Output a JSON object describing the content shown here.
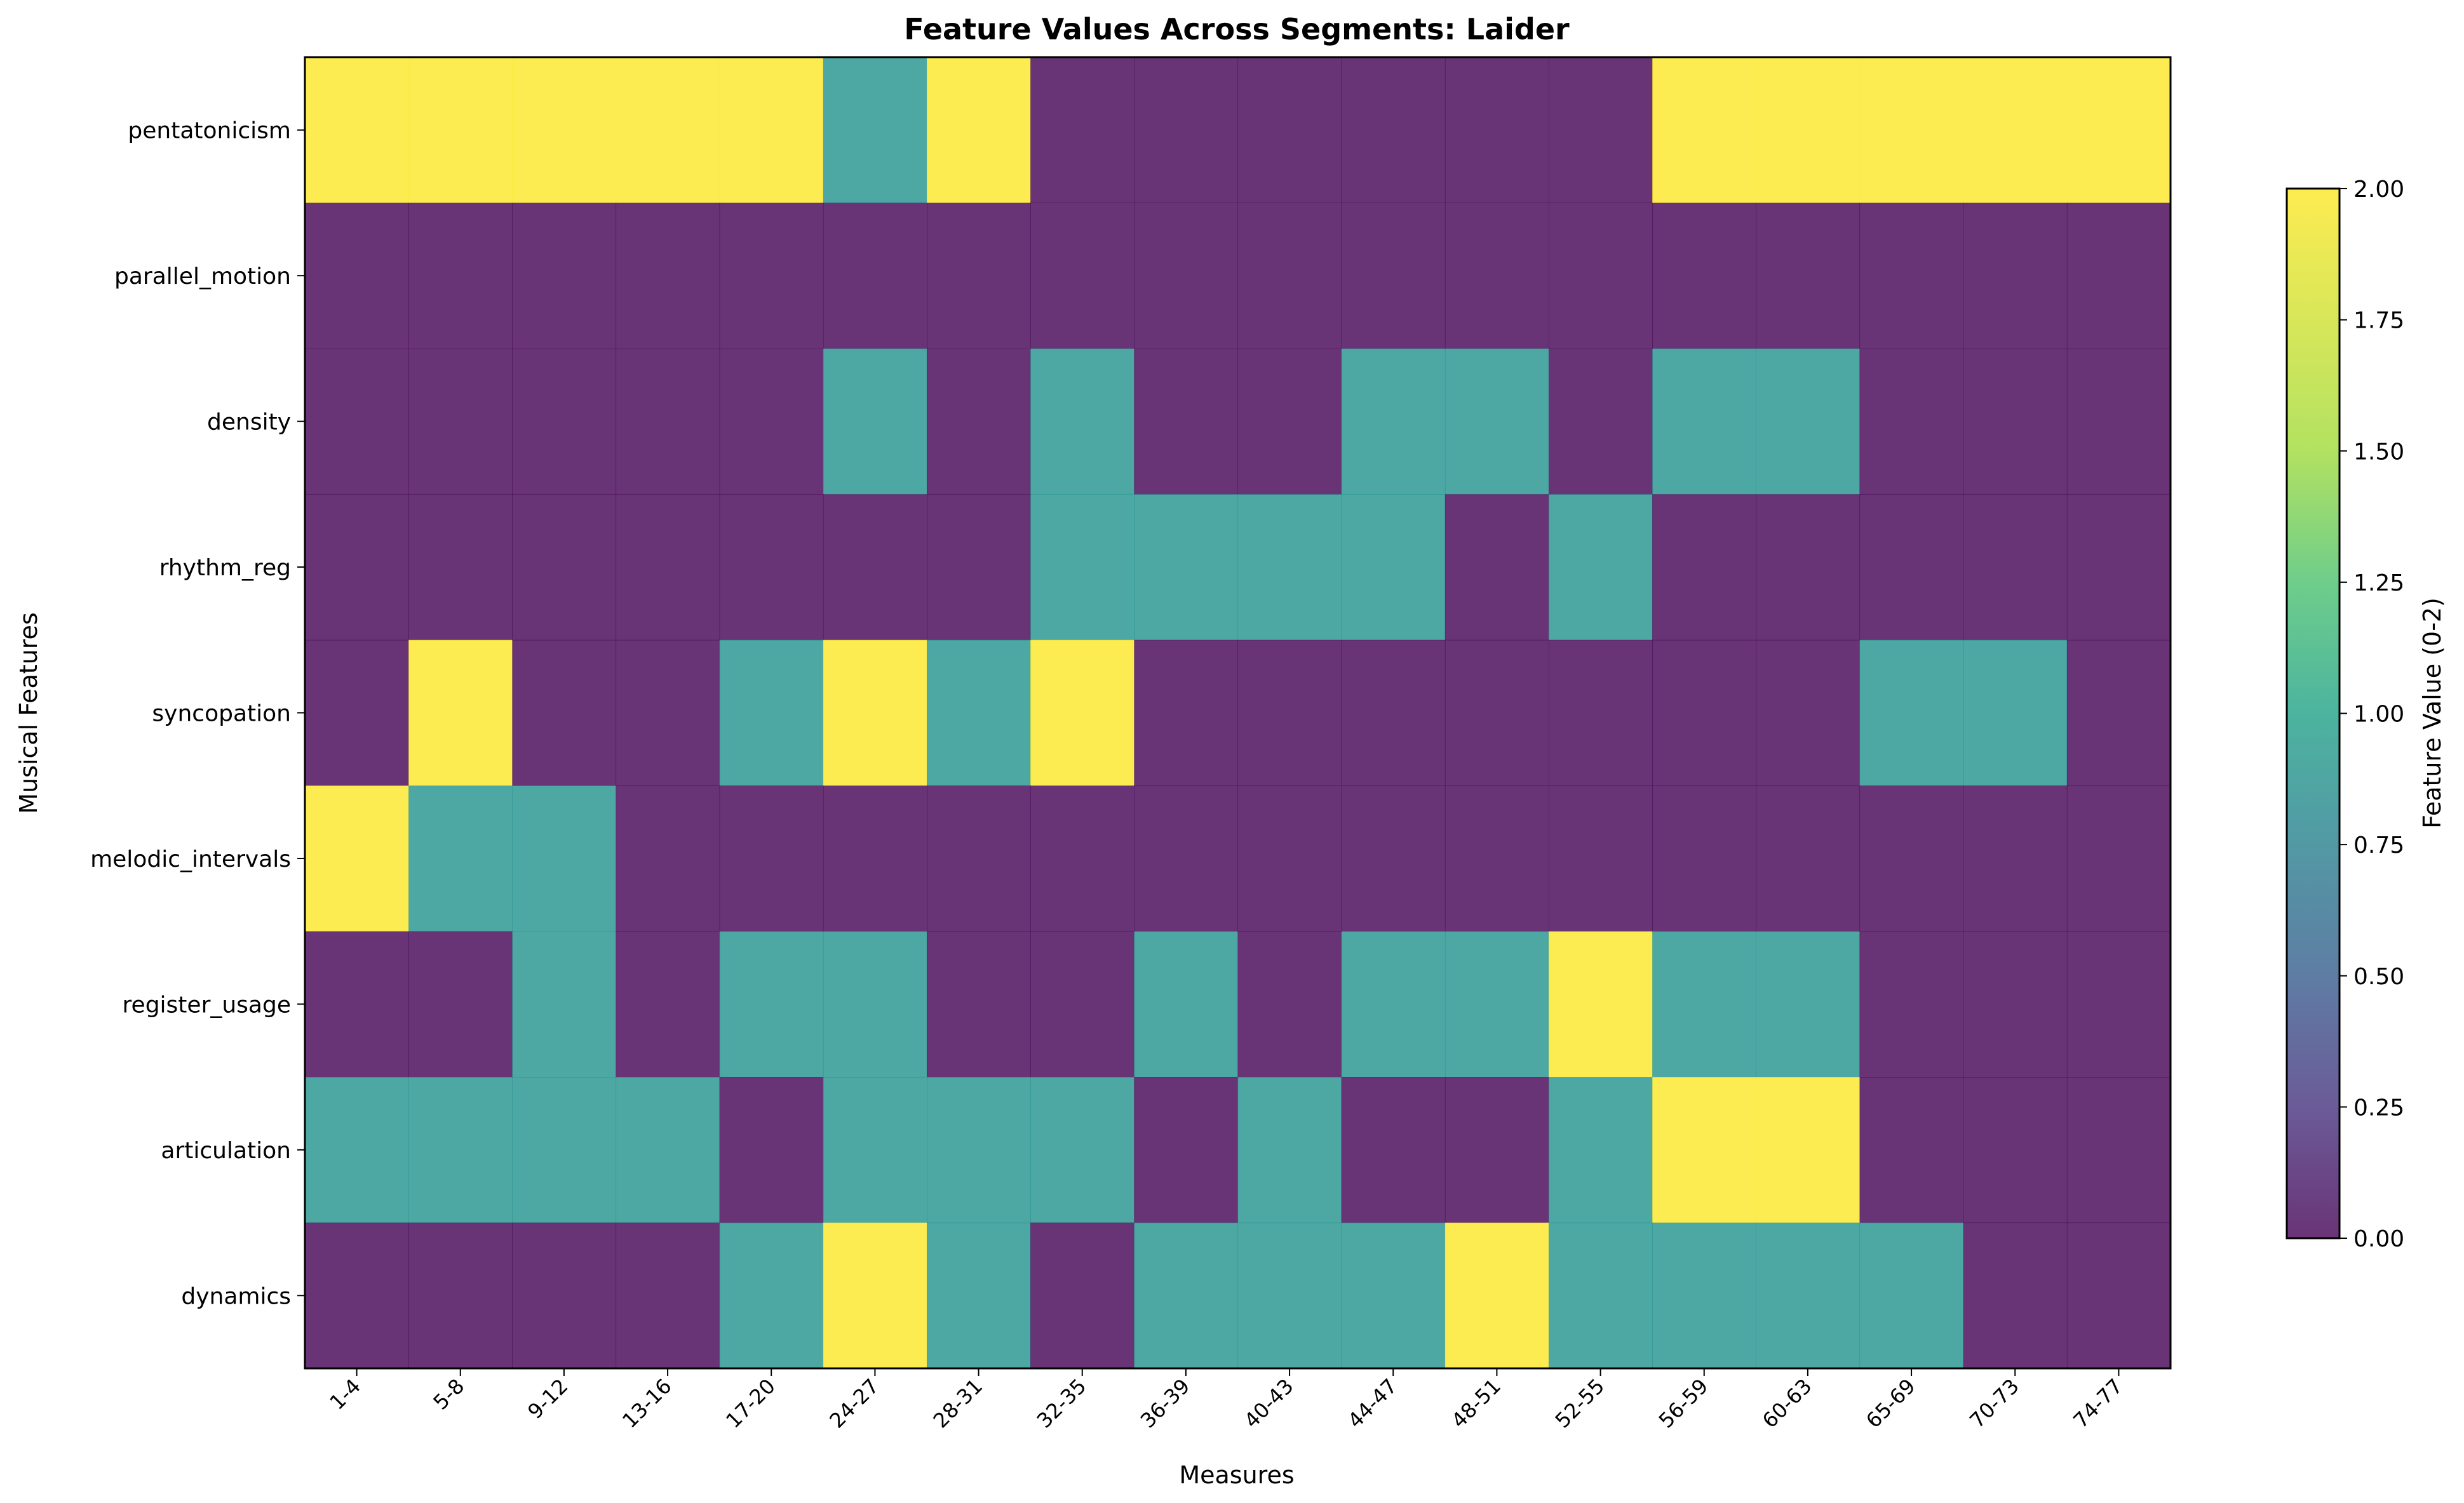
{
  "chart_data": {
    "type": "heatmap",
    "title": "Feature Values Across Segments: Laider",
    "xlabel": "Measures",
    "ylabel": "Musical Features",
    "x_categories": [
      "1-4",
      "5-8",
      "9-12",
      "13-16",
      "17-20",
      "24-27",
      "28-31",
      "32-35",
      "36-39",
      "40-43",
      "44-47",
      "48-51",
      "52-55",
      "56-59",
      "60-63",
      "65-69",
      "70-73",
      "74-77"
    ],
    "y_categories": [
      "pentatonicism",
      "parallel_motion",
      "density",
      "rhythm_reg",
      "syncopation",
      "melodic_intervals",
      "register_usage",
      "articulation",
      "dynamics"
    ],
    "values": [
      [
        2,
        2,
        2,
        2,
        2,
        1,
        2,
        0,
        0,
        0,
        0,
        0,
        0,
        2,
        2,
        2,
        2,
        2
      ],
      [
        0,
        0,
        0,
        0,
        0,
        0,
        0,
        0,
        0,
        0,
        0,
        0,
        0,
        0,
        0,
        0,
        0,
        0
      ],
      [
        0,
        0,
        0,
        0,
        0,
        1,
        0,
        1,
        0,
        0,
        1,
        1,
        0,
        1,
        1,
        0,
        0,
        0
      ],
      [
        0,
        0,
        0,
        0,
        0,
        0,
        0,
        1,
        1,
        1,
        1,
        0,
        1,
        0,
        0,
        0,
        0,
        0
      ],
      [
        0,
        2,
        0,
        0,
        1,
        2,
        1,
        2,
        0,
        0,
        0,
        0,
        0,
        0,
        0,
        1,
        1,
        0
      ],
      [
        2,
        1,
        1,
        0,
        0,
        0,
        0,
        0,
        0,
        0,
        0,
        0,
        0,
        0,
        0,
        0,
        0,
        0
      ],
      [
        0,
        0,
        1,
        0,
        1,
        1,
        0,
        0,
        1,
        0,
        1,
        1,
        2,
        1,
        1,
        0,
        0,
        0
      ],
      [
        1,
        1,
        1,
        1,
        0,
        1,
        1,
        1,
        0,
        1,
        0,
        0,
        1,
        2,
        2,
        0,
        0,
        0
      ],
      [
        0,
        0,
        0,
        0,
        1,
        2,
        1,
        0,
        1,
        1,
        1,
        2,
        1,
        1,
        1,
        1,
        0,
        0
      ]
    ],
    "colormap": "viridis",
    "cell_alpha": 0.8,
    "colors": {
      "0": "#440154",
      "1": "#21918c",
      "2": "#fde725"
    },
    "vmin": 0,
    "vmax": 2,
    "colorbar": {
      "label": "Feature Value (0-2)",
      "ticks": [
        "0.00",
        "0.25",
        "0.50",
        "0.75",
        "1.00",
        "1.25",
        "1.50",
        "1.75",
        "2.00"
      ]
    },
    "grid": false,
    "legend": "colorbar-right"
  }
}
